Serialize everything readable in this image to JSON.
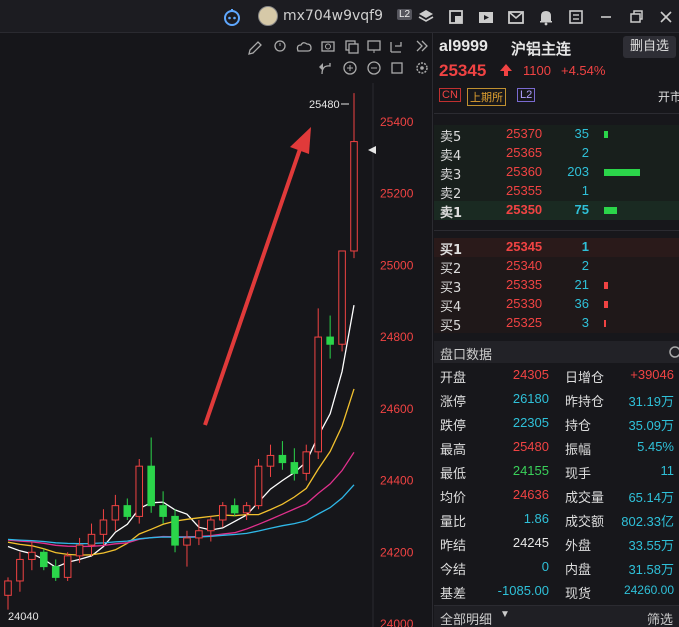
{
  "topbar": {
    "username": "mx704w9vqf9",
    "level_badge": "L2",
    "icons": [
      "robot-icon",
      "layers-icon",
      "grid-icon",
      "video-icon",
      "mail-icon",
      "bell-icon",
      "menu-icon",
      "minimize-icon",
      "restore-icon",
      "close-icon"
    ]
  },
  "chart": {
    "toolbar_icons": [
      "pen-icon",
      "alarm-icon",
      "cloud-icon",
      "camera-icon",
      "copy-icon",
      "monitor-icon",
      "fullscreen-icon",
      "collapse-icon",
      "undo-icon",
      "zoom-in-icon",
      "zoom-out-icon",
      "reset-icon",
      "settings-icon"
    ],
    "high_label": "25480",
    "low_label": "24040",
    "price_ticks": [
      "25400",
      "25200",
      "25000",
      "24800",
      "24600",
      "24400",
      "24200",
      "24000"
    ],
    "colors": {
      "up": "#f04343",
      "down": "#2bd54a",
      "ma5": "#ffffff",
      "ma10": "#f2c12e",
      "ma20": "#e0308c",
      "ma30": "#2fb8e8",
      "ma60": "#6a6af0"
    }
  },
  "chart_data": {
    "type": "candlestick",
    "symbol": "al9999",
    "ylim": [
      24000,
      25500
    ],
    "candles": [
      {
        "o": 24080,
        "h": 24130,
        "l": 24040,
        "c": 24120
      },
      {
        "o": 24120,
        "h": 24200,
        "l": 24090,
        "c": 24180
      },
      {
        "o": 24180,
        "h": 24230,
        "l": 24150,
        "c": 24200
      },
      {
        "o": 24200,
        "h": 24210,
        "l": 24150,
        "c": 24160
      },
      {
        "o": 24160,
        "h": 24180,
        "l": 24120,
        "c": 24130
      },
      {
        "o": 24130,
        "h": 24200,
        "l": 24120,
        "c": 24190
      },
      {
        "o": 24190,
        "h": 24240,
        "l": 24170,
        "c": 24220
      },
      {
        "o": 24220,
        "h": 24280,
        "l": 24190,
        "c": 24250
      },
      {
        "o": 24250,
        "h": 24320,
        "l": 24220,
        "c": 24290
      },
      {
        "o": 24290,
        "h": 24360,
        "l": 24260,
        "c": 24330
      },
      {
        "o": 24330,
        "h": 24350,
        "l": 24290,
        "c": 24300
      },
      {
        "o": 24300,
        "h": 24460,
        "l": 24280,
        "c": 24440
      },
      {
        "o": 24440,
        "h": 24520,
        "l": 24310,
        "c": 24330
      },
      {
        "o": 24330,
        "h": 24370,
        "l": 24280,
        "c": 24300
      },
      {
        "o": 24300,
        "h": 24320,
        "l": 24200,
        "c": 24220
      },
      {
        "o": 24220,
        "h": 24260,
        "l": 24160,
        "c": 24240
      },
      {
        "o": 24240,
        "h": 24290,
        "l": 24220,
        "c": 24260
      },
      {
        "o": 24260,
        "h": 24300,
        "l": 24230,
        "c": 24290
      },
      {
        "o": 24290,
        "h": 24340,
        "l": 24270,
        "c": 24330
      },
      {
        "o": 24330,
        "h": 24350,
        "l": 24300,
        "c": 24310
      },
      {
        "o": 24310,
        "h": 24340,
        "l": 24290,
        "c": 24330
      },
      {
        "o": 24330,
        "h": 24460,
        "l": 24320,
        "c": 24440
      },
      {
        "o": 24440,
        "h": 24500,
        "l": 24410,
        "c": 24470
      },
      {
        "o": 24470,
        "h": 24510,
        "l": 24430,
        "c": 24450
      },
      {
        "o": 24450,
        "h": 24490,
        "l": 24400,
        "c": 24420
      },
      {
        "o": 24420,
        "h": 24500,
        "l": 24400,
        "c": 24480
      },
      {
        "o": 24480,
        "h": 24880,
        "l": 24460,
        "c": 24800
      },
      {
        "o": 24800,
        "h": 24860,
        "l": 24740,
        "c": 24780
      },
      {
        "o": 24780,
        "h": 25040,
        "l": 24760,
        "c": 25040
      },
      {
        "o": 25040,
        "h": 25480,
        "l": 25020,
        "c": 25345
      }
    ]
  },
  "quote": {
    "code": "al9999",
    "name": "沪铝主连",
    "action_button": "删自选",
    "price": "25345",
    "change": "1100",
    "change_pct": "+4.54%",
    "tags": [
      "CN",
      "上期所",
      "L2"
    ],
    "open_short": "开市"
  },
  "orderbook": {
    "asks": [
      {
        "label": "卖5",
        "price": "25370",
        "vol": "35",
        "bar": 0.12
      },
      {
        "label": "卖4",
        "price": "25365",
        "vol": "2",
        "bar": 0.0
      },
      {
        "label": "卖3",
        "price": "25360",
        "vol": "203",
        "bar": 1.0
      },
      {
        "label": "卖2",
        "price": "25355",
        "vol": "1",
        "bar": 0.0
      },
      {
        "label": "卖1",
        "price": "25350",
        "vol": "75",
        "bar": 0.37
      }
    ],
    "bids": [
      {
        "label": "买1",
        "price": "25345",
        "vol": "1",
        "bar": 0.0
      },
      {
        "label": "买2",
        "price": "25340",
        "vol": "2",
        "bar": 0.0
      },
      {
        "label": "买3",
        "price": "25335",
        "vol": "21",
        "bar": 0.1
      },
      {
        "label": "买4",
        "price": "25330",
        "vol": "36",
        "bar": 0.12
      },
      {
        "label": "买5",
        "price": "25325",
        "vol": "3",
        "bar": 0.02
      }
    ]
  },
  "panel_data": {
    "title": "盘口数据",
    "rows": [
      {
        "l1": "开盘",
        "v1": "24305",
        "c1": "red",
        "l2": "日增仓",
        "v2": "+39046",
        "c2": "red"
      },
      {
        "l1": "涨停",
        "v1": "26180",
        "c1": "cyan",
        "l2": "昨持仓",
        "v2": "31.19万",
        "c2": "cyan"
      },
      {
        "l1": "跌停",
        "v1": "22305",
        "c1": "cyan",
        "l2": "持仓",
        "v2": "35.09万",
        "c2": "cyan"
      },
      {
        "l1": "最高",
        "v1": "25480",
        "c1": "red",
        "l2": "振幅",
        "v2": "5.45%",
        "c2": "cyan"
      },
      {
        "l1": "最低",
        "v1": "24155",
        "c1": "green",
        "l2": "现手",
        "v2": "11",
        "c2": "cyan"
      },
      {
        "l1": "均价",
        "v1": "24636",
        "c1": "red",
        "l2": "成交量",
        "v2": "65.14万",
        "c2": "cyan"
      },
      {
        "l1": "量比",
        "v1": "1.86",
        "c1": "cyan",
        "l2": "成交额",
        "v2": "802.33亿",
        "c2": "cyan"
      },
      {
        "l1": "昨结",
        "v1": "24245",
        "c1": "white",
        "l2": "外盘",
        "v2": "33.55万",
        "c2": "cyan"
      },
      {
        "l1": "今结",
        "v1": "0",
        "c1": "cyan",
        "l2": "内盘",
        "v2": "31.58万",
        "c2": "cyan"
      },
      {
        "l1": "基差",
        "v1": "-1085.00",
        "c1": "cyan",
        "l2": "现货",
        "v2": "24260.00",
        "c2": "cyan"
      }
    ],
    "footer_left": "全部明细",
    "footer_right": "筛选"
  }
}
